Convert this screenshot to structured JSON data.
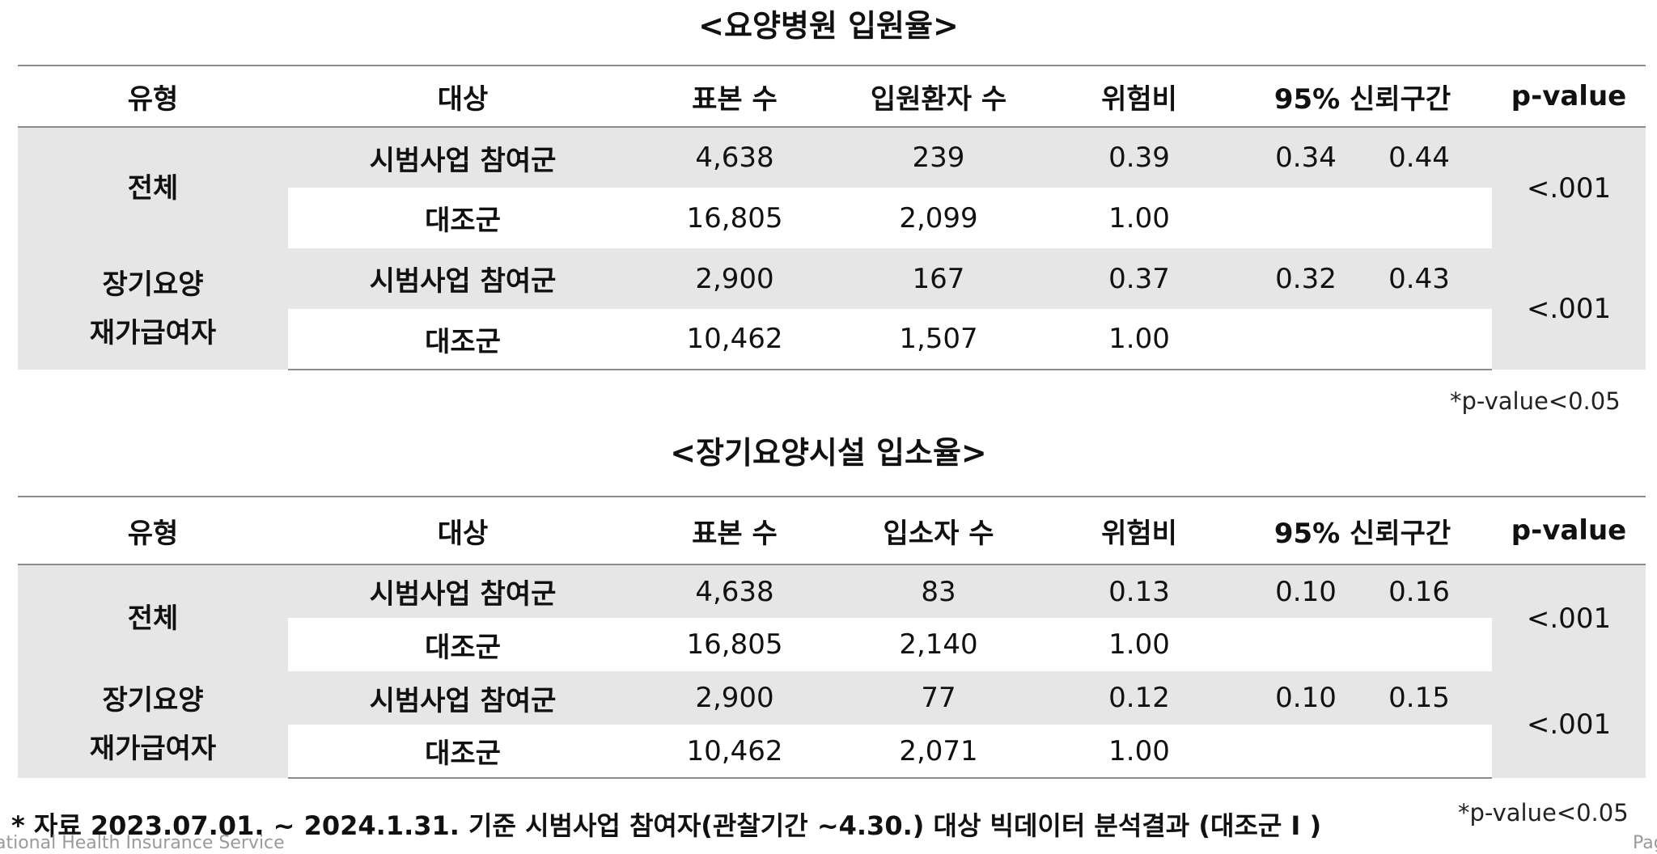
{
  "section1": {
    "title": "<요양병원 입원율>",
    "headers": [
      "유형",
      "대상",
      "표본 수",
      "입원환자 수",
      "위험비",
      "95% 신뢰구간",
      "p-value"
    ],
    "groups": [
      {
        "category": "전체",
        "p_value": "<.001",
        "rows": [
          {
            "target": "시범사업 참여군",
            "n": "4,638",
            "count": "239",
            "hr": "0.39",
            "ci_low": "0.34",
            "ci_high": "0.44"
          },
          {
            "target": "대조군",
            "n": "16,805",
            "count": "2,099",
            "hr": "1.00",
            "ci_low": "",
            "ci_high": ""
          }
        ]
      },
      {
        "category": "장기요양\n재가급여자",
        "p_value": "<.001",
        "rows": [
          {
            "target": "시범사업 참여군",
            "n": "2,900",
            "count": "167",
            "hr": "0.37",
            "ci_low": "0.32",
            "ci_high": "0.43"
          },
          {
            "target": "대조군",
            "n": "10,462",
            "count": "1,507",
            "hr": "1.00",
            "ci_low": "",
            "ci_high": ""
          }
        ]
      }
    ],
    "note": "*p-value<0.05"
  },
  "section2": {
    "title": "<장기요양시설 입소율>",
    "headers": [
      "유형",
      "대상",
      "표본 수",
      "입소자 수",
      "위험비",
      "95% 신뢰구간",
      "p-value"
    ],
    "groups": [
      {
        "category": "전체",
        "p_value": "<.001",
        "rows": [
          {
            "target": "시범사업 참여군",
            "n": "4,638",
            "count": "83",
            "hr": "0.13",
            "ci_low": "0.10",
            "ci_high": "0.16"
          },
          {
            "target": "대조군",
            "n": "16,805",
            "count": "2,140",
            "hr": "1.00",
            "ci_low": "",
            "ci_high": ""
          }
        ]
      },
      {
        "category": "장기요양\n재가급여자",
        "p_value": "<.001",
        "rows": [
          {
            "target": "시범사업 참여군",
            "n": "2,900",
            "count": "77",
            "hr": "0.12",
            "ci_low": "0.10",
            "ci_high": "0.15"
          },
          {
            "target": "대조군",
            "n": "10,462",
            "count": "2,071",
            "hr": "1.00",
            "ci_low": "",
            "ci_high": ""
          }
        ]
      }
    ],
    "note": "*p-value<0.05"
  },
  "footnote": "* 자료 2023.07.01. ~ 2024.1.31. 기준 시범사업 참여자(관찰기간 ~4.30.) 대상 빅데이터 분석결과 (대조군 I )",
  "watermark_left": "ational Health Insurance Service",
  "watermark_right": "Pag",
  "colors": {
    "band": "#e6e6e6",
    "rule": "#8c8c8c",
    "text": "#111111"
  }
}
